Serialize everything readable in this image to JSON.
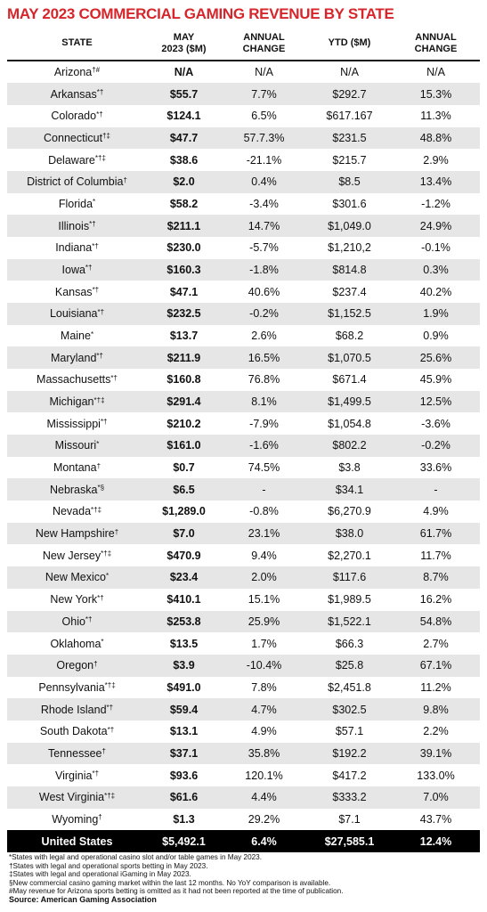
{
  "header": {
    "title": "MAY 2023 COMMERCIAL GAMING REVENUE BY STATE"
  },
  "table": {
    "columns": [
      [
        "STATE"
      ],
      [
        "MAY",
        "2023 ($M)"
      ],
      [
        "ANNUAL",
        "CHANGE"
      ],
      [
        "YTD ($M)"
      ],
      [
        "ANNUAL",
        "CHANGE"
      ]
    ],
    "rows": [
      [
        {
          "state": "Arizona",
          "sup": "†#"
        },
        "N/A",
        "N/A",
        "N/A",
        "N/A"
      ],
      [
        {
          "state": "Arkansas",
          "sup": "*†"
        },
        "$55.7",
        "7.7%",
        "$292.7",
        "15.3%"
      ],
      [
        {
          "state": "Colorado",
          "sup": "*†"
        },
        "$124.1",
        "6.5%",
        "$617.167",
        "11.3%"
      ],
      [
        {
          "state": "Connecticut",
          "sup": "†‡"
        },
        "$47.7",
        "57.7.3%",
        "$231.5",
        "48.8%"
      ],
      [
        {
          "state": "Delaware",
          "sup": "*†‡"
        },
        "$38.6",
        "-21.1%",
        "$215.7",
        "2.9%"
      ],
      [
        {
          "state": "District of Columbia",
          "sup": "†"
        },
        "$2.0",
        "0.4%",
        "$8.5",
        "13.4%"
      ],
      [
        {
          "state": "Florida",
          "sup": "*"
        },
        "$58.2",
        "-3.4%",
        "$301.6",
        "-1.2%"
      ],
      [
        {
          "state": "Illinois",
          "sup": "*†"
        },
        "$211.1",
        "14.7%",
        "$1,049.0",
        "24.9%"
      ],
      [
        {
          "state": "Indiana",
          "sup": "*†"
        },
        "$230.0",
        "-5.7%",
        "$1,210,2",
        "-0.1%"
      ],
      [
        {
          "state": "Iowa",
          "sup": "*†"
        },
        "$160.3",
        "-1.8%",
        "$814.8",
        "0.3%"
      ],
      [
        {
          "state": "Kansas",
          "sup": "*†"
        },
        "$47.1",
        "40.6%",
        "$237.4",
        "40.2%"
      ],
      [
        {
          "state": "Louisiana",
          "sup": "*†"
        },
        "$232.5",
        "-0.2%",
        "$1,152.5",
        "1.9%"
      ],
      [
        {
          "state": "Maine",
          "sup": "*"
        },
        "$13.7",
        "2.6%",
        "$68.2",
        "0.9%"
      ],
      [
        {
          "state": "Maryland",
          "sup": "*†"
        },
        "$211.9",
        "16.5%",
        "$1,070.5",
        "25.6%"
      ],
      [
        {
          "state": "Massachusetts",
          "sup": "*†"
        },
        "$160.8",
        "76.8%",
        "$671.4",
        "45.9%"
      ],
      [
        {
          "state": "Michigan",
          "sup": "*†‡"
        },
        "$291.4",
        "8.1%",
        "$1,499.5",
        "12.5%"
      ],
      [
        {
          "state": "Mississippi",
          "sup": "*†"
        },
        "$210.2",
        "-7.9%",
        "$1,054.8",
        "-3.6%"
      ],
      [
        {
          "state": "Missouri",
          "sup": "*"
        },
        "$161.0",
        "-1.6%",
        "$802.2",
        "-0.2%"
      ],
      [
        {
          "state": "Montana",
          "sup": "†"
        },
        "$0.7",
        "74.5%",
        "$3.8",
        "33.6%"
      ],
      [
        {
          "state": "Nebraska",
          "sup": "*§"
        },
        "$6.5",
        "-",
        "$34.1",
        "-"
      ],
      [
        {
          "state": "Nevada",
          "sup": "*†‡"
        },
        "$1,289.0",
        "-0.8%",
        "$6,270.9",
        "4.9%"
      ],
      [
        {
          "state": "New Hampshire",
          "sup": "†"
        },
        "$7.0",
        "23.1%",
        "$38.0",
        "61.7%"
      ],
      [
        {
          "state": "New Jersey",
          "sup": "*†‡"
        },
        "$470.9",
        "9.4%",
        "$2,270.1",
        "11.7%"
      ],
      [
        {
          "state": "New Mexico",
          "sup": "*"
        },
        "$23.4",
        "2.0%",
        "$117.6",
        "8.7%"
      ],
      [
        {
          "state": "New York",
          "sup": "*†"
        },
        "$410.1",
        "15.1%",
        "$1,989.5",
        "16.2%"
      ],
      [
        {
          "state": "Ohio",
          "sup": "*†"
        },
        "$253.8",
        "25.9%",
        "$1,522.1",
        "54.8%"
      ],
      [
        {
          "state": "Oklahoma",
          "sup": "*"
        },
        "$13.5",
        "1.7%",
        "$66.3",
        "2.7%"
      ],
      [
        {
          "state": "Oregon",
          "sup": "†"
        },
        "$3.9",
        "-10.4%",
        "$25.8",
        "67.1%"
      ],
      [
        {
          "state": "Pennsylvania",
          "sup": "*†‡"
        },
        "$491.0",
        "7.8%",
        "$2,451.8",
        "11.2%"
      ],
      [
        {
          "state": "Rhode Island",
          "sup": "*†"
        },
        "$59.4",
        "4.7%",
        "$302.5",
        "9.8%"
      ],
      [
        {
          "state": "South Dakota",
          "sup": "*†"
        },
        "$13.1",
        "4.9%",
        "$57.1",
        "2.2%"
      ],
      [
        {
          "state": "Tennessee",
          "sup": "†"
        },
        "$37.1",
        "35.8%",
        "$192.2",
        "39.1%"
      ],
      [
        {
          "state": "Virginia",
          "sup": "*†"
        },
        "$93.6",
        "120.1%",
        "$417.2",
        "133.0%"
      ],
      [
        {
          "state": "West Virginia",
          "sup": "*†‡"
        },
        "$61.6",
        "4.4%",
        "$333.2",
        "7.0%"
      ],
      [
        {
          "state": "Wyoming",
          "sup": "†"
        },
        "$1.3",
        "29.2%",
        "$7.1",
        "43.7%"
      ]
    ],
    "total": [
      "United States",
      "$5,492.1",
      "6.4%",
      "$27,585.1",
      "12.4%"
    ]
  },
  "footnotes": [
    "*States with legal and operational casino slot and/or table games in May 2023.",
    "†States with legal and operational sports betting in May 2023.",
    "‡States with legal and operational iGaming in May 2023.",
    "§New commercial casino gaming market within the last 12 months. No YoY comparison is available.",
    "#May revenue for Arizona sports betting is omitted as it had not been reported at the time of publication."
  ],
  "source": "Source: American Gaming Association"
}
